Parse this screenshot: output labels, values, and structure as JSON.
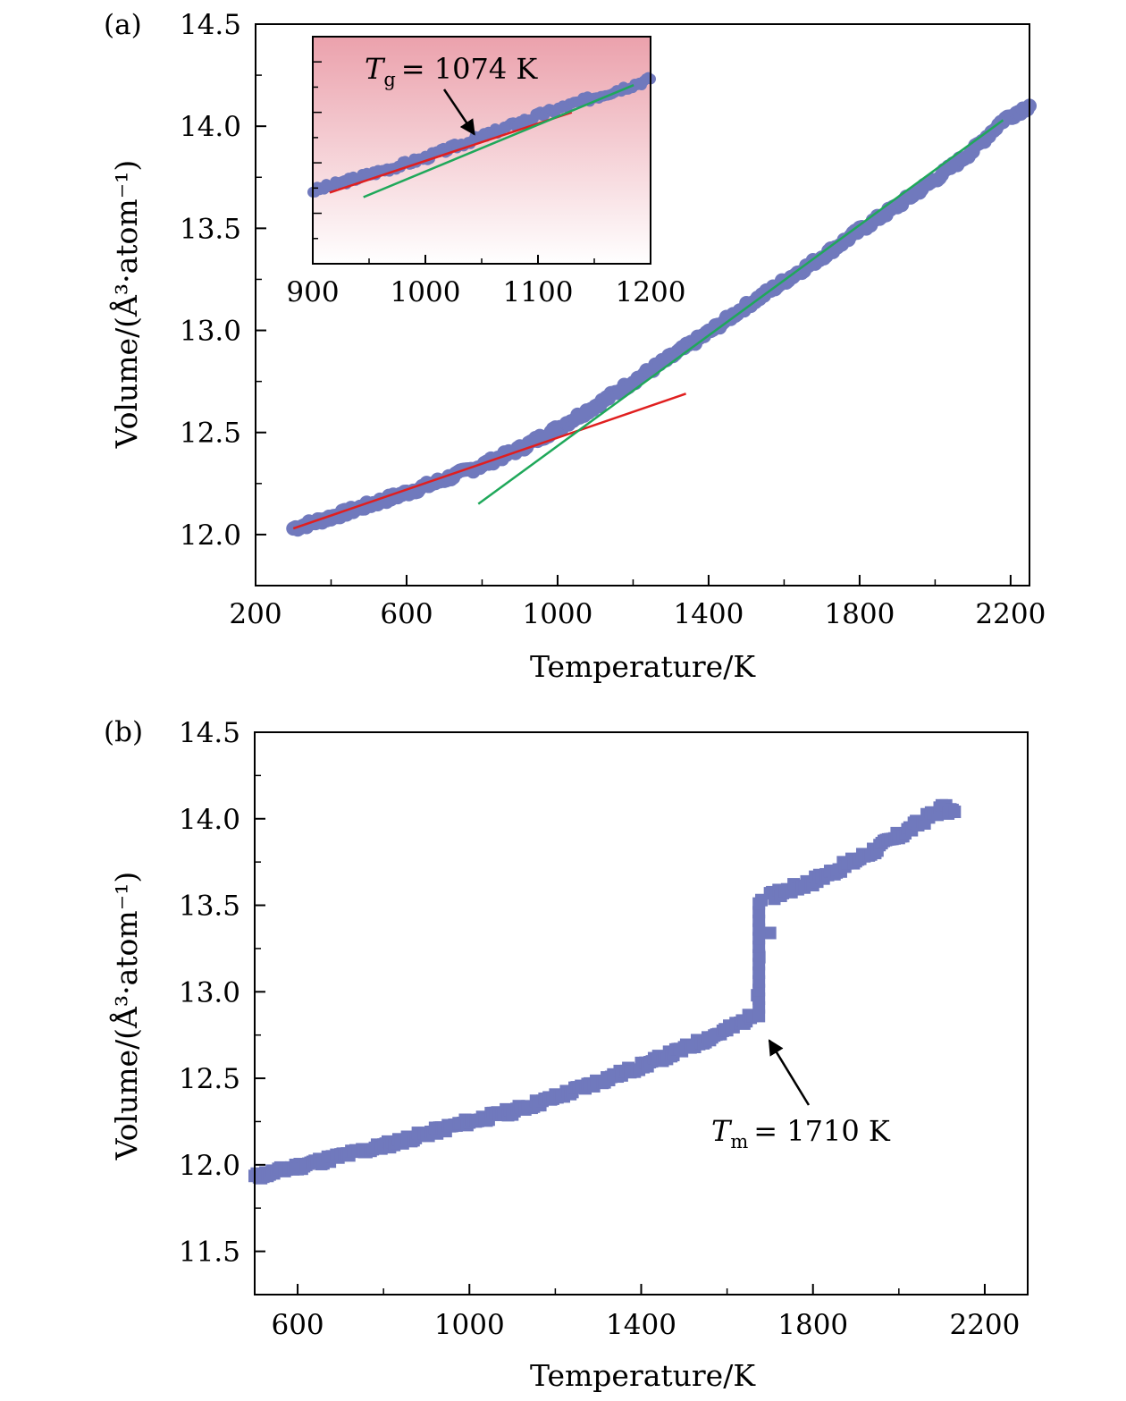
{
  "colors": {
    "points": "#7079bd",
    "points_outline": "#6870b4",
    "fit_low": "#e01f1f",
    "fit_high": "#1fa85a",
    "inset_bg_top": "#eba1ac",
    "inset_bg_bottom": "#ffffff",
    "axis": "#000000",
    "arrow": "#000000"
  },
  "chart_data": [
    {
      "panel": "(a)",
      "type": "scatter",
      "marker": "circle",
      "xlabel": "Temperature/K",
      "ylabel": "Volume/(Å³·atom⁻¹)",
      "xlim": [
        200,
        2250
      ],
      "ylim": [
        11.75,
        14.5
      ],
      "x_ticks": [
        200,
        600,
        1000,
        1400,
        1800,
        2200
      ],
      "y_ticks": [
        12.0,
        12.5,
        13.0,
        13.5,
        14.0,
        14.5
      ],
      "x_tick_labels": [
        "200",
        "600",
        "1000",
        "1400",
        "1800",
        "2200"
      ],
      "y_tick_labels": [
        "12.0",
        "12.5",
        "13.0",
        "13.5",
        "14.0",
        "14.5"
      ],
      "series": [
        {
          "values_xy": [
            [
              300,
              12.03
            ],
            [
              400,
              12.085
            ],
            [
              500,
              12.145
            ],
            [
              600,
              12.205
            ],
            [
              700,
              12.27
            ],
            [
              800,
              12.34
            ],
            [
              900,
              12.42
            ],
            [
              1000,
              12.52
            ],
            [
              1100,
              12.63
            ],
            [
              1200,
              12.75
            ],
            [
              1300,
              12.87
            ],
            [
              1400,
              12.99
            ],
            [
              1500,
              13.12
            ],
            [
              1600,
              13.24
            ],
            [
              1700,
              13.36
            ],
            [
              1800,
              13.49
            ],
            [
              1900,
              13.61
            ],
            [
              2000,
              13.74
            ],
            [
              2100,
              13.88
            ],
            [
              2180,
              14.03
            ],
            [
              2250,
              14.1
            ]
          ]
        }
      ],
      "fit_lines": [
        {
          "color_key": "fit_low",
          "x": [
            300,
            1340
          ],
          "y": [
            12.03,
            12.69
          ]
        },
        {
          "color_key": "fit_high",
          "x": [
            790,
            2180
          ],
          "y": [
            12.15,
            14.03
          ]
        }
      ],
      "inset": {
        "type": "scatter",
        "marker": "circle",
        "xlim": [
          900,
          1200
        ],
        "ylim": [
          11.95,
          12.7
        ],
        "x_ticks": [
          900,
          1000,
          1100,
          1200
        ],
        "x_tick_labels": [
          "900",
          "1000",
          "1100",
          "1200"
        ],
        "y_ticks_unlabeled": true,
        "background": "gradient",
        "series": [
          {
            "values_xy": [
              [
                900,
                12.19
              ],
              [
                950,
                12.245
              ],
              [
                1000,
                12.3
              ],
              [
                1050,
                12.37
              ],
              [
                1100,
                12.44
              ],
              [
                1150,
                12.5
              ],
              [
                1200,
                12.56
              ]
            ]
          }
        ],
        "fit_lines": [
          {
            "color_key": "fit_low",
            "x": [
              915,
              1130
            ],
            "y": [
              12.185,
              12.45
            ]
          },
          {
            "color_key": "fit_high",
            "x": [
              945,
              1185
            ],
            "y": [
              12.17,
              12.54
            ]
          }
        ],
        "annotation": {
          "symbol": "T",
          "subscript": "g",
          "text": "= 1074 K",
          "arrow_to_x": 1053,
          "arrow_to_y": 12.36
        }
      }
    },
    {
      "panel": "(b)",
      "type": "scatter",
      "marker": "square",
      "xlabel": "Temperature/K",
      "ylabel": "Volume/(Å³·atom⁻¹)",
      "xlim": [
        500,
        2300
      ],
      "ylim": [
        11.25,
        14.5
      ],
      "x_ticks": [
        600,
        1000,
        1400,
        1800,
        2200
      ],
      "y_ticks": [
        11.5,
        12.0,
        12.5,
        13.0,
        13.5,
        14.0,
        14.5
      ],
      "x_tick_labels": [
        "600",
        "1000",
        "1400",
        "1800",
        "2200"
      ],
      "y_tick_labels": [
        "11.5",
        "12.0",
        "12.5",
        "13.0",
        "13.5",
        "14.0",
        "14.5"
      ],
      "series": [
        {
          "values_xy": [
            [
              500,
              11.93
            ],
            [
              600,
              11.99
            ],
            [
              700,
              12.05
            ],
            [
              800,
              12.11
            ],
            [
              900,
              12.18
            ],
            [
              1000,
              12.25
            ],
            [
              1100,
              12.31
            ],
            [
              1200,
              12.39
            ],
            [
              1300,
              12.48
            ],
            [
              1400,
              12.57
            ],
            [
              1500,
              12.67
            ],
            [
              1600,
              12.78
            ],
            [
              1660,
              12.86
            ],
            [
              1670,
              12.98
            ],
            [
              1675,
              13.2
            ],
            [
              1680,
              13.53
            ],
            [
              1700,
              13.34
            ],
            [
              1700,
              13.55
            ],
            [
              1800,
              13.64
            ],
            [
              1900,
              13.76
            ],
            [
              2000,
              13.9
            ],
            [
              2100,
              14.06
            ],
            [
              2130,
              14.04
            ]
          ]
        }
      ],
      "annotation": {
        "symbol": "T",
        "subscript": "m",
        "text": "= 1710 K",
        "arrow_to_x": 1690,
        "arrow_to_y": 12.75
      }
    }
  ]
}
